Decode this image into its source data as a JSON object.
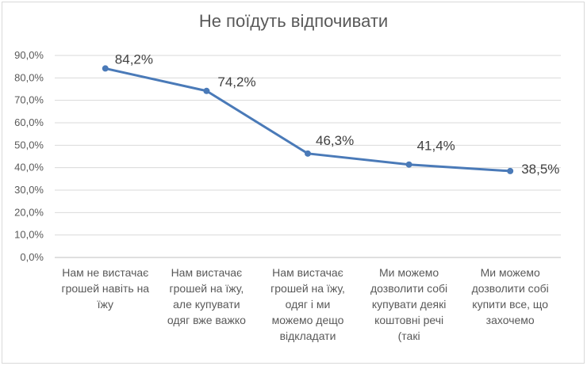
{
  "chart_data": {
    "type": "line",
    "title": "Не поїдуть відпочивати",
    "xlabel": "",
    "ylabel": "",
    "ylim": [
      0,
      90
    ],
    "yticks": [
      "0,0%",
      "10,0%",
      "20,0%",
      "30,0%",
      "40,0%",
      "50,0%",
      "60,0%",
      "70,0%",
      "80,0%",
      "90,0%"
    ],
    "grid": true,
    "legend": "none",
    "categories": [
      "Нам не вистачає грошей навіть на їжу",
      "Нам вистачає грошей на їжу, але купувати одяг вже важко",
      "Нам вистачає грошей на їжу, одяг і ми можемо дещо відкладати",
      "Ми можемо дозволити собі купувати деякі коштовні речі (такі",
      "Ми можемо дозволити собі купити все, що захочемо"
    ],
    "series": [
      {
        "values": [
          84.2,
          74.2,
          46.3,
          41.4,
          38.5
        ],
        "labels": [
          "84,2%",
          "74,2%",
          "46,3%",
          "41,4%",
          "38,5%"
        ],
        "color": "#4a7ab8"
      }
    ]
  }
}
